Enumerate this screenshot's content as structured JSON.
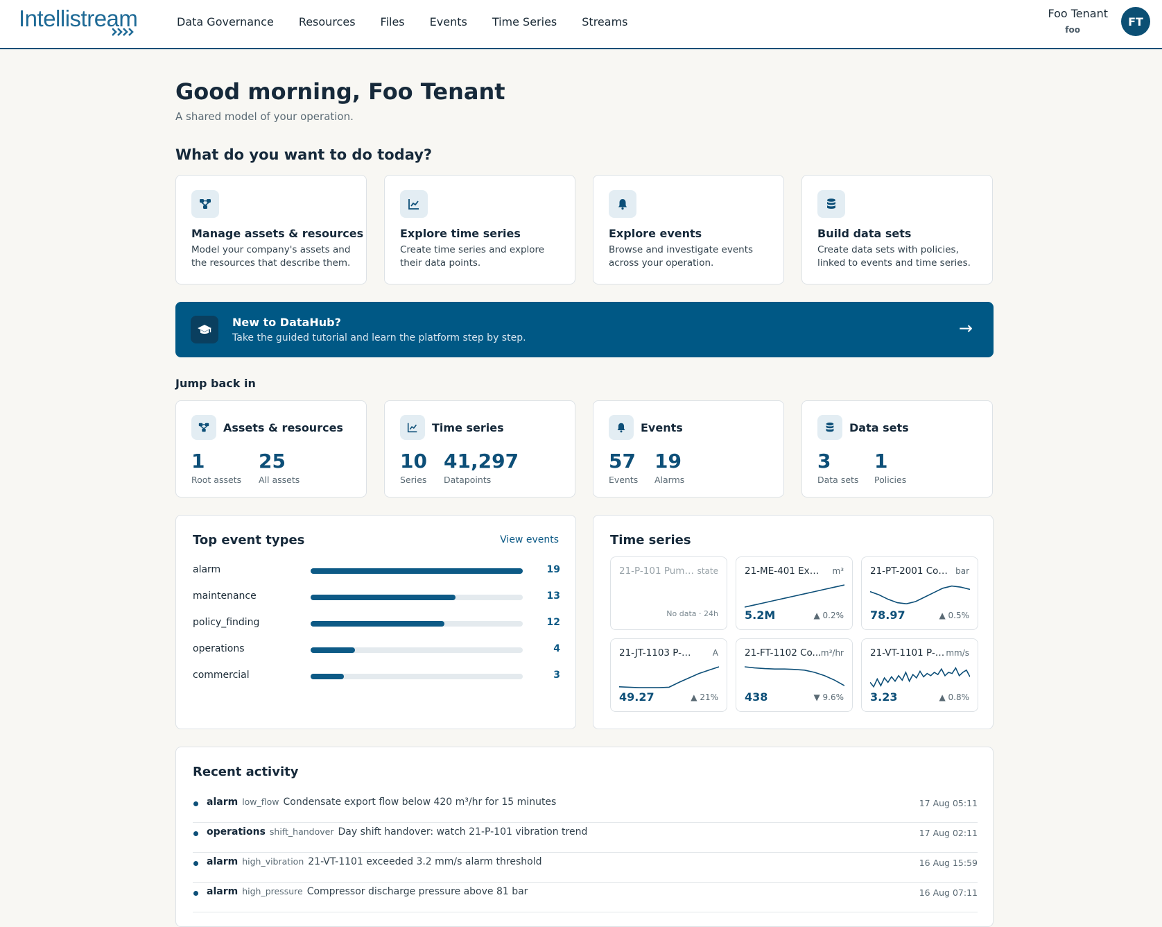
{
  "brand": {
    "name": "Intellistream",
    "accent": "#0d4f78",
    "banner_color": "#005885"
  },
  "nav": {
    "items": [
      "Data Governance",
      "Resources",
      "Files",
      "Events",
      "Time Series",
      "Streams"
    ]
  },
  "user": {
    "name": "Foo Tenant",
    "tenant": "foo",
    "initials": "FT"
  },
  "greeting": "Good morning, Foo Tenant",
  "subtitle": "A shared model of your operation.",
  "question": "What do you want to do today?",
  "actions": [
    {
      "icon": "hierarchy-icon",
      "title": "Manage assets & resources",
      "desc": "Model your company's assets and the resources that describe them."
    },
    {
      "icon": "line-chart-icon",
      "title": "Explore time series",
      "desc": "Create time series and explore their data points."
    },
    {
      "icon": "bell-icon",
      "title": "Explore events",
      "desc": "Browse and investigate events across your operation."
    },
    {
      "icon": "database-icon",
      "title": "Build data sets",
      "desc": "Create data sets with policies, linked to events and time series."
    }
  ],
  "banner": {
    "icon": "graduation-cap-icon",
    "title": "New to DataHub?",
    "desc": "Take the guided tutorial and learn the platform step by step.",
    "arrow": "→"
  },
  "jump": {
    "title": "Jump back in",
    "cards": [
      {
        "icon": "hierarchy-icon",
        "title": "Assets & resources",
        "stats": [
          {
            "value": "1",
            "label": "Root assets"
          },
          {
            "value": "25",
            "label": "All assets"
          }
        ]
      },
      {
        "icon": "line-chart-icon",
        "title": "Time series",
        "stats": [
          {
            "value": "10",
            "label": "Series"
          },
          {
            "value": "41,297",
            "label": "Datapoints"
          }
        ]
      },
      {
        "icon": "bell-icon",
        "title": "Events",
        "stats": [
          {
            "value": "57",
            "label": "Events"
          },
          {
            "value": "19",
            "label": "Alarms"
          }
        ]
      },
      {
        "icon": "database-icon",
        "title": "Data sets",
        "stats": [
          {
            "value": "3",
            "label": "Data sets"
          },
          {
            "value": "1",
            "label": "Policies"
          }
        ]
      }
    ]
  },
  "event_types": {
    "title": "Top event types",
    "link": "View events",
    "max": 19,
    "rows": [
      {
        "label": "alarm",
        "value": 19
      },
      {
        "label": "maintenance",
        "value": 13
      },
      {
        "label": "policy_finding",
        "value": 12
      },
      {
        "label": "operations",
        "value": 4
      },
      {
        "label": "commercial",
        "value": 3
      }
    ]
  },
  "timeseries": {
    "title": "Time series",
    "tiles": [
      {
        "name": "21-P-101 Pump ...",
        "unit": "state",
        "value": "",
        "change": "",
        "nodata": "No data · 24h",
        "spark": []
      },
      {
        "name": "21-ME-401 Expor...",
        "unit": "m³",
        "value": "5.2M",
        "change": "▲ 0.2%",
        "spark": [
          0,
          0.1,
          0.2,
          0.3,
          0.4,
          0.5,
          0.6,
          0.7,
          0.8,
          0.9,
          1.0
        ]
      },
      {
        "name": "21-PT-2001 Com...",
        "unit": "bar",
        "value": "78.97",
        "change": "▲ 0.5%",
        "spark": [
          0.7,
          0.55,
          0.35,
          0.2,
          0.15,
          0.25,
          0.45,
          0.65,
          0.85,
          0.95,
          0.9,
          0.8
        ]
      },
      {
        "name": "21-JT-1103 P-101 m...",
        "unit": "A",
        "value": "49.27",
        "change": "▲ 21%",
        "spark": [
          0.1,
          0.08,
          0.06,
          0.06,
          0.06,
          0.08,
          0.3,
          0.5,
          0.7,
          0.85,
          1.0
        ]
      },
      {
        "name": "21-FT-1102 Co...",
        "unit": "m³/hr",
        "value": "438",
        "change": "▼ 9.6%",
        "spark": [
          1.0,
          0.95,
          0.92,
          0.9,
          0.9,
          0.88,
          0.85,
          0.75,
          0.6,
          0.4,
          0.15
        ]
      },
      {
        "name": "21-VT-1101 P-1...",
        "unit": "mm/s",
        "value": "3.23",
        "change": "▲ 0.8%",
        "spark": [
          0.3,
          0.1,
          0.45,
          0.15,
          0.5,
          0.3,
          0.55,
          0.35,
          0.6,
          0.4,
          0.75,
          0.35,
          0.65,
          0.5,
          0.8,
          0.55,
          0.7,
          0.6,
          0.75,
          0.65,
          0.9,
          0.6,
          0.75,
          0.7,
          0.95,
          0.6,
          0.75,
          0.85,
          0.55
        ]
      }
    ]
  },
  "activity": {
    "title": "Recent activity",
    "rows": [
      {
        "type": "alarm",
        "sub": "low_flow",
        "msg": "Condensate export flow below 420 m³/hr for 15 minutes",
        "time": "17 Aug 05:11"
      },
      {
        "type": "operations",
        "sub": "shift_handover",
        "msg": "Day shift handover: watch 21-P-101 vibration trend",
        "time": "17 Aug 02:11"
      },
      {
        "type": "alarm",
        "sub": "high_vibration",
        "msg": "21-VT-1101 exceeded 3.2 mm/s alarm threshold",
        "time": "16 Aug 15:59"
      },
      {
        "type": "alarm",
        "sub": "high_pressure",
        "msg": "Compressor discharge pressure above 81 bar",
        "time": "16 Aug 07:11"
      }
    ]
  }
}
